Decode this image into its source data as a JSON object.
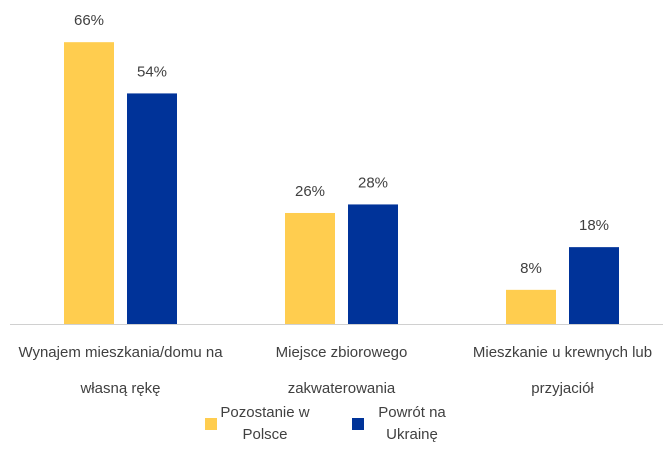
{
  "chart_data": {
    "type": "bar",
    "categories": [
      "Wynajem mieszkania/domu na własną rękę",
      "Miejsce zbiorowego zakwaterowania",
      "Mieszkanie u krewnych lub przyjaciół"
    ],
    "series": [
      {
        "name": "Pozostanie w Polsce",
        "color": "#ffcd4f",
        "values": [
          66,
          26,
          8
        ],
        "value_labels": [
          "66%",
          "26%",
          "8%"
        ]
      },
      {
        "name": "Powrót na Ukrainę",
        "color": "#003399",
        "values": [
          54,
          28,
          18
        ],
        "value_labels": [
          "54%",
          "28%",
          "18%"
        ]
      }
    ]
  }
}
